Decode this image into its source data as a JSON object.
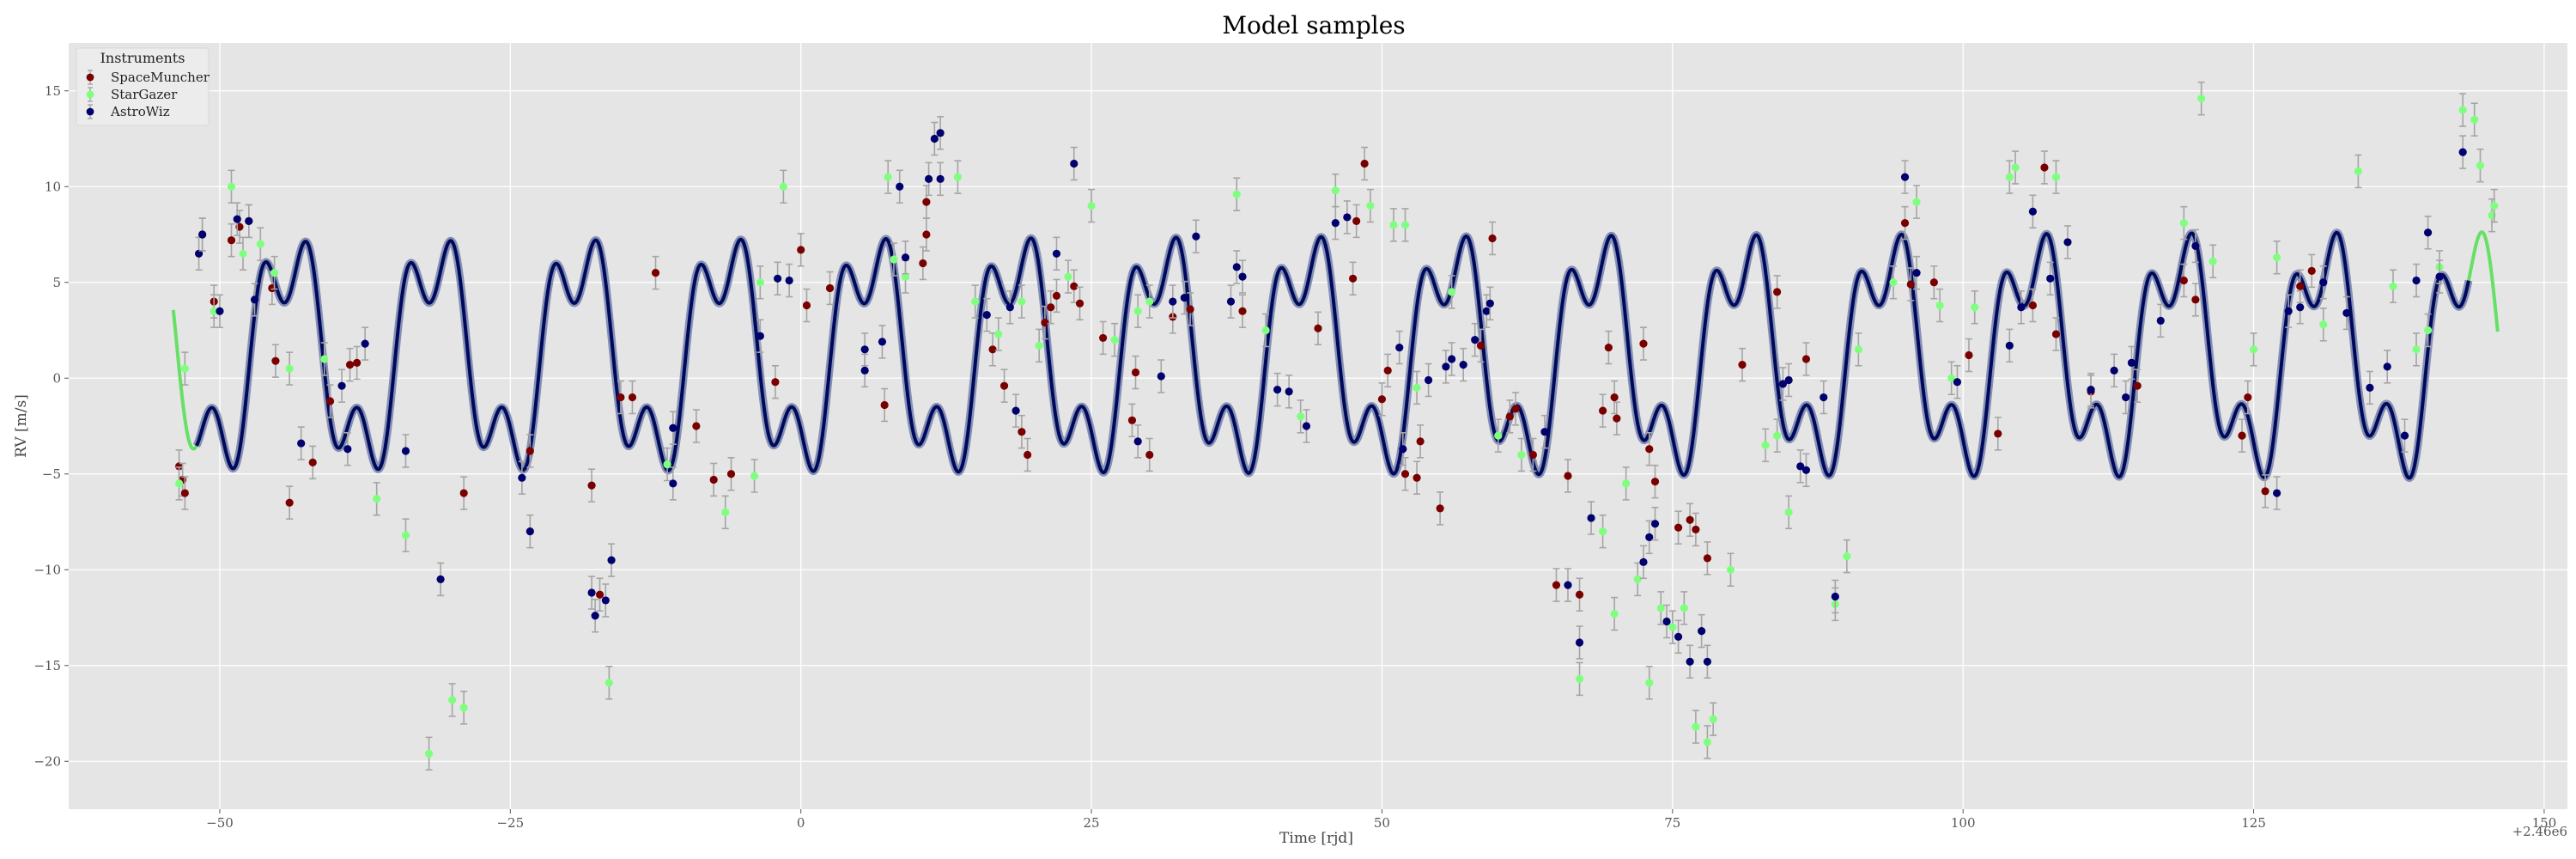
{
  "chart_data": {
    "type": "scatter",
    "title": "Model samples",
    "xlabel": "Time [rjd]",
    "ylabel": "RV [m/s]",
    "x_offset_label": "+2.46e6",
    "xlim": [
      -63,
      152
    ],
    "ylim": [
      -22.5,
      17.5
    ],
    "xticks": [
      -50,
      -25,
      0,
      25,
      50,
      75,
      100,
      125,
      150
    ],
    "yticks": [
      -20,
      -15,
      -10,
      -5,
      0,
      5,
      10,
      15
    ],
    "xtick_labels": [
      "−50",
      "−25",
      "0",
      "25",
      "50",
      "75",
      "100",
      "125",
      "150"
    ],
    "ytick_labels": [
      "−20",
      "−15",
      "−10",
      "−5",
      "0",
      "5",
      "10",
      "15"
    ],
    "grid": true,
    "background": "#e5e5e5",
    "legend": {
      "title": "Instruments",
      "position": "top-left",
      "entries": [
        "SpaceMuncher",
        "StarGazer",
        "AstroWiz"
      ]
    },
    "series": [
      {
        "name": "SpaceMuncher",
        "color": "#7a0000",
        "points": [
          [
            -53.5,
            -4.6
          ],
          [
            -53.2,
            -5.3
          ],
          [
            -53.0,
            -6.0
          ],
          [
            -51.5,
            7.5
          ],
          [
            -50.5,
            4.0
          ],
          [
            -49,
            7.2
          ],
          [
            -48.3,
            7.9
          ],
          [
            -47.5,
            8.2
          ],
          [
            -45.5,
            4.7
          ],
          [
            -45.2,
            0.9
          ],
          [
            -44,
            -6.5
          ],
          [
            -42,
            -4.4
          ],
          [
            -40.5,
            -1.2
          ],
          [
            -38.8,
            0.7
          ],
          [
            -38.2,
            0.8
          ],
          [
            -29,
            -6.0
          ],
          [
            -23.3,
            -3.8
          ],
          [
            -18,
            -5.6
          ],
          [
            -17.3,
            -11.3
          ],
          [
            -15.5,
            -1.0
          ],
          [
            -14.5,
            -1.0
          ],
          [
            -12.5,
            5.5
          ],
          [
            -9,
            -2.5
          ],
          [
            -7.5,
            -5.3
          ],
          [
            -6,
            -5.0
          ],
          [
            -2.2,
            -0.2
          ],
          [
            0,
            6.7
          ],
          [
            0.5,
            3.8
          ],
          [
            2.5,
            4.7
          ],
          [
            7.2,
            -1.4
          ],
          [
            10.5,
            6.0
          ],
          [
            10.8,
            9.2
          ],
          [
            10.8,
            7.5
          ],
          [
            16.5,
            1.5
          ],
          [
            17.5,
            -0.4
          ],
          [
            19,
            -2.8
          ],
          [
            19.5,
            -4.0
          ],
          [
            21,
            2.9
          ],
          [
            21.5,
            3.7
          ],
          [
            22,
            4.3
          ],
          [
            23.5,
            4.8
          ],
          [
            24,
            3.9
          ],
          [
            26,
            2.1
          ],
          [
            28.5,
            -2.2
          ],
          [
            28.8,
            0.3
          ],
          [
            30,
            -4.0
          ],
          [
            32,
            3.2
          ],
          [
            33.5,
            3.6
          ],
          [
            38,
            3.5
          ],
          [
            44.5,
            2.6
          ],
          [
            47.5,
            5.2
          ],
          [
            47.8,
            8.2
          ],
          [
            48.5,
            11.2
          ],
          [
            50,
            -1.1
          ],
          [
            50.5,
            0.4
          ],
          [
            52,
            -5.0
          ],
          [
            53,
            -5.2
          ],
          [
            53.3,
            -3.3
          ],
          [
            55,
            -6.8
          ],
          [
            58.5,
            1.7
          ],
          [
            59.5,
            7.3
          ],
          [
            61,
            -2.0
          ],
          [
            61.5,
            -1.6
          ],
          [
            63,
            -4.0
          ],
          [
            65,
            -10.8
          ],
          [
            66,
            -5.1
          ],
          [
            67,
            -11.3
          ],
          [
            69,
            -1.7
          ],
          [
            69.5,
            1.6
          ],
          [
            70,
            -1.0
          ],
          [
            70.2,
            -2.1
          ],
          [
            72.5,
            1.8
          ],
          [
            73,
            -3.7
          ],
          [
            73.5,
            -5.4
          ],
          [
            75.5,
            -7.8
          ],
          [
            76.5,
            -7.4
          ],
          [
            77,
            -7.9
          ],
          [
            78,
            -9.4
          ],
          [
            81,
            0.7
          ],
          [
            84,
            4.5
          ],
          [
            86.5,
            1.0
          ],
          [
            95,
            8.1
          ],
          [
            95.5,
            4.9
          ],
          [
            97.5,
            5.0
          ],
          [
            100.5,
            1.2
          ],
          [
            103,
            -2.9
          ],
          [
            106,
            3.8
          ],
          [
            107,
            11.0
          ],
          [
            108,
            2.3
          ],
          [
            111,
            -0.7
          ],
          [
            115,
            -0.4
          ],
          [
            119,
            5.1
          ],
          [
            120,
            4.1
          ],
          [
            124,
            -3.0
          ],
          [
            124.5,
            -1.0
          ],
          [
            126,
            -5.9
          ],
          [
            129,
            4.8
          ],
          [
            130,
            5.6
          ]
        ]
      },
      {
        "name": "StarGazer",
        "color": "#7fff7f",
        "points": [
          [
            -53.5,
            -5.5
          ],
          [
            -53,
            0.5
          ],
          [
            -50.5,
            3.5
          ],
          [
            -49,
            10.0
          ],
          [
            -48,
            6.5
          ],
          [
            -46.5,
            7.0
          ],
          [
            -45.3,
            5.5
          ],
          [
            -44,
            0.5
          ],
          [
            -41,
            1.0
          ],
          [
            -36.5,
            -6.3
          ],
          [
            -34,
            -8.2
          ],
          [
            -32,
            -19.6
          ],
          [
            -30,
            -16.8
          ],
          [
            -29,
            -17.2
          ],
          [
            -16.5,
            -15.9
          ],
          [
            -11.5,
            -4.5
          ],
          [
            -6.5,
            -7.0
          ],
          [
            -4,
            -5.1
          ],
          [
            -3.5,
            5.0
          ],
          [
            -1.5,
            10.0
          ],
          [
            7.5,
            10.5
          ],
          [
            8,
            6.2
          ],
          [
            9,
            5.3
          ],
          [
            13.5,
            10.5
          ],
          [
            15,
            4.0
          ],
          [
            17,
            2.3
          ],
          [
            19,
            4.0
          ],
          [
            20.5,
            1.7
          ],
          [
            23,
            5.3
          ],
          [
            25,
            9.0
          ],
          [
            27,
            2.0
          ],
          [
            29,
            3.5
          ],
          [
            30,
            4.0
          ],
          [
            37.5,
            9.6
          ],
          [
            40,
            2.5
          ],
          [
            43,
            -2.0
          ],
          [
            46,
            9.8
          ],
          [
            49,
            9.0
          ],
          [
            51,
            8.0
          ],
          [
            52,
            8.0
          ],
          [
            53,
            -0.5
          ],
          [
            56,
            4.5
          ],
          [
            60,
            -3.0
          ],
          [
            62,
            -4.0
          ],
          [
            67,
            -15.7
          ],
          [
            69,
            -8.0
          ],
          [
            70,
            -12.3
          ],
          [
            71,
            -5.5
          ],
          [
            72,
            -10.5
          ],
          [
            73,
            -15.9
          ],
          [
            74,
            -12.0
          ],
          [
            75,
            -13.0
          ],
          [
            76,
            -12.0
          ],
          [
            77,
            -18.2
          ],
          [
            78,
            -19.0
          ],
          [
            78.5,
            -17.8
          ],
          [
            80,
            -10.0
          ],
          [
            83,
            -3.5
          ],
          [
            84,
            -3.0
          ],
          [
            85,
            -7.0
          ],
          [
            89,
            -11.8
          ],
          [
            90,
            -9.3
          ],
          [
            91,
            1.5
          ],
          [
            94,
            5.0
          ],
          [
            96,
            9.2
          ],
          [
            98,
            3.8
          ],
          [
            99,
            0.0
          ],
          [
            101,
            3.7
          ],
          [
            104,
            10.5
          ],
          [
            104.5,
            11.0
          ],
          [
            108,
            10.5
          ],
          [
            119,
            8.1
          ],
          [
            120.5,
            14.6
          ],
          [
            121.5,
            6.1
          ],
          [
            125,
            1.5
          ],
          [
            127,
            6.3
          ],
          [
            131,
            2.8
          ],
          [
            134,
            10.8
          ],
          [
            137,
            4.8
          ],
          [
            139,
            1.5
          ],
          [
            140,
            2.5
          ],
          [
            141,
            5.8
          ],
          [
            143,
            14.0
          ],
          [
            144,
            13.5
          ],
          [
            144.5,
            11.1
          ],
          [
            145.5,
            8.5
          ],
          [
            145.7,
            9.0
          ]
        ]
      },
      {
        "name": "AstroWiz",
        "color": "#00006e",
        "points": [
          [
            -51.8,
            6.5
          ],
          [
            -51.5,
            7.5
          ],
          [
            -50,
            3.5
          ],
          [
            -48.5,
            8.3
          ],
          [
            -47.5,
            8.2
          ],
          [
            -47,
            4.1
          ],
          [
            -43,
            -3.4
          ],
          [
            -39.5,
            -0.4
          ],
          [
            -39,
            -3.7
          ],
          [
            -37.5,
            1.8
          ],
          [
            -34,
            -3.8
          ],
          [
            -31,
            -10.5
          ],
          [
            -24,
            -5.2
          ],
          [
            -23.3,
            -8.0
          ],
          [
            -18,
            -11.2
          ],
          [
            -17.7,
            -12.4
          ],
          [
            -16.8,
            -11.6
          ],
          [
            -16.3,
            -9.5
          ],
          [
            -11,
            -2.6
          ],
          [
            -11,
            -5.5
          ],
          [
            -3.5,
            2.2
          ],
          [
            -2,
            5.2
          ],
          [
            -1,
            5.1
          ],
          [
            5.5,
            0.4
          ],
          [
            5.5,
            1.5
          ],
          [
            7,
            1.9
          ],
          [
            8.5,
            10.0
          ],
          [
            9,
            6.3
          ],
          [
            11,
            10.4
          ],
          [
            11.5,
            12.5
          ],
          [
            12,
            12.8
          ],
          [
            12,
            10.4
          ],
          [
            16,
            3.3
          ],
          [
            18,
            3.7
          ],
          [
            18.5,
            -1.7
          ],
          [
            22,
            6.5
          ],
          [
            23.5,
            11.2
          ],
          [
            29,
            -3.3
          ],
          [
            31,
            0.1
          ],
          [
            32,
            4.0
          ],
          [
            33,
            4.2
          ],
          [
            34,
            7.4
          ],
          [
            37,
            4.0
          ],
          [
            37.5,
            5.8
          ],
          [
            38,
            5.3
          ],
          [
            41,
            -0.6
          ],
          [
            42,
            -0.7
          ],
          [
            43.5,
            -2.5
          ],
          [
            46,
            8.1
          ],
          [
            47,
            8.4
          ],
          [
            51.5,
            1.6
          ],
          [
            51.8,
            -3.7
          ],
          [
            54,
            -0.1
          ],
          [
            55.5,
            0.6
          ],
          [
            56,
            1.0
          ],
          [
            57,
            0.7
          ],
          [
            58,
            2.0
          ],
          [
            59,
            3.5
          ],
          [
            59.3,
            3.9
          ],
          [
            64,
            -2.8
          ],
          [
            66,
            -10.8
          ],
          [
            67,
            -13.8
          ],
          [
            68,
            -7.3
          ],
          [
            72.5,
            -9.6
          ],
          [
            73,
            -8.3
          ],
          [
            73.5,
            -7.6
          ],
          [
            74.5,
            -12.7
          ],
          [
            75.5,
            -13.5
          ],
          [
            76.5,
            -14.8
          ],
          [
            77.5,
            -13.2
          ],
          [
            78,
            -14.8
          ],
          [
            84.5,
            -0.3
          ],
          [
            85,
            -0.1
          ],
          [
            86,
            -4.6
          ],
          [
            86.5,
            -4.8
          ],
          [
            88,
            -1.0
          ],
          [
            89,
            -11.4
          ],
          [
            95,
            10.5
          ],
          [
            96,
            5.5
          ],
          [
            99.5,
            -0.2
          ],
          [
            104,
            1.7
          ],
          [
            105,
            3.7
          ],
          [
            106,
            8.7
          ],
          [
            107.5,
            5.2
          ],
          [
            109,
            7.1
          ],
          [
            111,
            -0.6
          ],
          [
            113,
            0.4
          ],
          [
            114,
            -1.0
          ],
          [
            114.5,
            0.8
          ],
          [
            117,
            3.0
          ],
          [
            120,
            6.9
          ],
          [
            127,
            -6.0
          ],
          [
            128,
            3.5
          ],
          [
            129,
            3.7
          ],
          [
            131,
            5.0
          ],
          [
            133,
            3.4
          ],
          [
            135,
            -0.5
          ],
          [
            136.5,
            0.6
          ],
          [
            138,
            -3.0
          ],
          [
            139,
            5.1
          ],
          [
            140,
            7.6
          ],
          [
            141,
            5.3
          ],
          [
            143,
            11.8
          ]
        ]
      }
    ],
    "model_curve": {
      "color": "#000a5a",
      "band_color": "#6673a6",
      "extrapolated_color": "#66e066",
      "x_start": -54,
      "x_end": 146,
      "fit_start": -52,
      "fit_end": 143.5,
      "offset": 1.2,
      "components": [
        {
          "amplitude": 5.2,
          "period": 12.5,
          "phase": -1.4
        },
        {
          "amplitude": 2.4,
          "period": 4.16,
          "phase": 2.6
        }
      ]
    }
  }
}
